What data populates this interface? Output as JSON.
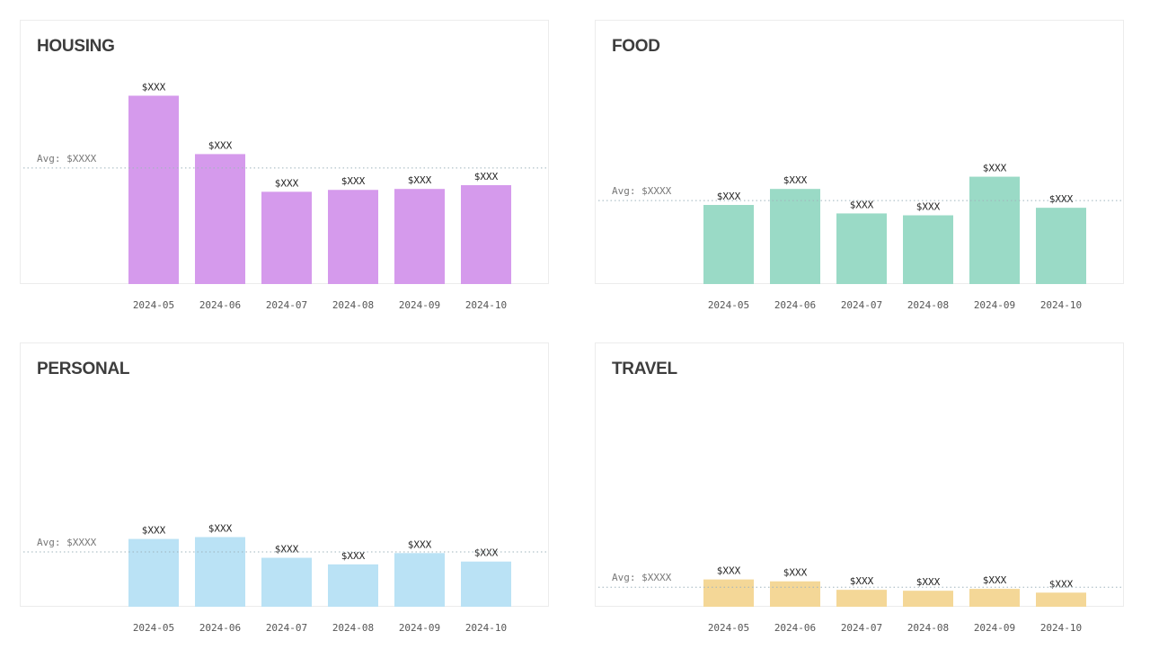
{
  "chart_data": [
    {
      "type": "bar",
      "title": "HOUSING",
      "color": "#d59aec",
      "categories": [
        "2024-05",
        "2024-06",
        "2024-07",
        "2024-08",
        "2024-09",
        "2024-10"
      ],
      "values": [
        100,
        69,
        49,
        50,
        50.5,
        52.5
      ],
      "ylim": [
        0,
        105
      ],
      "bar_labels": [
        "$XXX",
        "$XXX",
        "$XXX",
        "$XXX",
        "$XXX",
        "$XXX"
      ],
      "avg_value": 61.6,
      "avg_label": "Avg: $XXXX"
    },
    {
      "type": "bar",
      "title": "FOOD",
      "color": "#9adac6",
      "categories": [
        "2024-05",
        "2024-06",
        "2024-07",
        "2024-08",
        "2024-09",
        "2024-10"
      ],
      "values": [
        42,
        50.5,
        37.5,
        36.5,
        57,
        40.5
      ],
      "ylim": [
        0,
        105
      ],
      "bar_labels": [
        "$XXX",
        "$XXX",
        "$XXX",
        "$XXX",
        "$XXX",
        "$XXX"
      ],
      "avg_value": 44.3,
      "avg_label": "Avg: $XXXX"
    },
    {
      "type": "bar",
      "title": "PERSONAL",
      "color": "#bae2f5",
      "categories": [
        "2024-05",
        "2024-06",
        "2024-07",
        "2024-08",
        "2024-09",
        "2024-10"
      ],
      "values": [
        36,
        37,
        26,
        22.5,
        28.5,
        24
      ],
      "ylim": [
        0,
        105
      ],
      "bar_labels": [
        "$XXX",
        "$XXX",
        "$XXX",
        "$XXX",
        "$XXX",
        "$XXX"
      ],
      "avg_value": 29.1,
      "avg_label": "Avg: $XXXX"
    },
    {
      "type": "bar",
      "title": "TRAVEL",
      "color": "#f4d797",
      "categories": [
        "2024-05",
        "2024-06",
        "2024-07",
        "2024-08",
        "2024-09",
        "2024-10"
      ],
      "values": [
        14.5,
        13.5,
        9,
        8.5,
        9.5,
        7.5
      ],
      "ylim": [
        0,
        105
      ],
      "bar_labels": [
        "$XXX",
        "$XXX",
        "$XXX",
        "$XXX",
        "$XXX",
        "$XXX"
      ],
      "avg_value": 10.4,
      "avg_label": "Avg: $XXXX"
    }
  ]
}
